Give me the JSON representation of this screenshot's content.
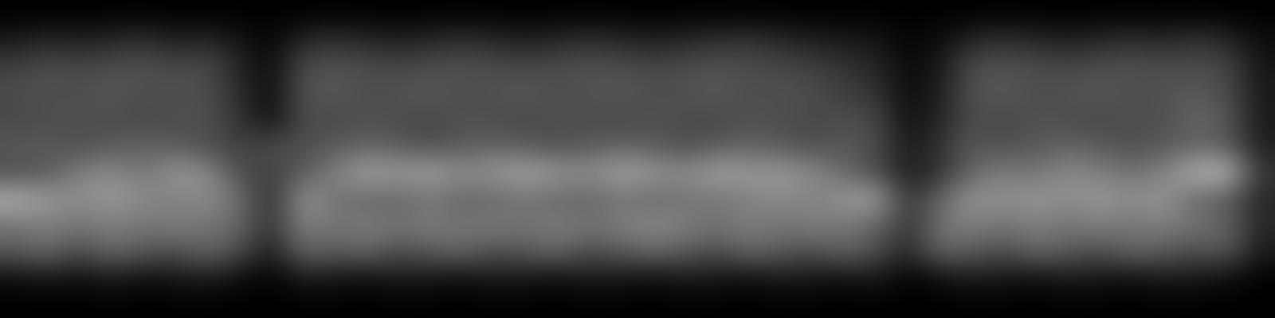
{
  "chart_data": {
    "type": "heatmap",
    "tick_labels": false,
    "color": "gray",
    "zlim": [
      0,
      1
    ],
    "cells": [
      [
        0,
        0,
        0,
        0,
        0,
        0,
        0,
        0,
        0,
        0,
        0,
        0,
        0,
        0,
        0,
        0,
        0,
        0,
        0,
        0,
        0,
        0,
        0,
        0,
        0,
        0,
        0,
        0,
        0,
        0,
        0,
        0,
        0,
        0,
        0,
        0,
        0,
        0,
        0,
        0
      ],
      [
        0.1,
        0.15,
        0.12,
        0.15,
        0.18,
        0.12,
        0.15,
        0.08,
        0.02,
        0.15,
        0.18,
        0.15,
        0.12,
        0.15,
        0.18,
        0.15,
        0.12,
        0.15,
        0.18,
        0.15,
        0.12,
        0.15,
        0.18,
        0.2,
        0.15,
        0.12,
        0.1,
        0.08,
        0.02,
        0.05,
        0.15,
        0.18,
        0.15,
        0.12,
        0.15,
        0.18,
        0.15,
        0.2,
        0.15,
        0.05
      ],
      [
        0.25,
        0.3,
        0.28,
        0.3,
        0.32,
        0.28,
        0.3,
        0.15,
        0.03,
        0.3,
        0.32,
        0.3,
        0.28,
        0.3,
        0.32,
        0.3,
        0.28,
        0.3,
        0.32,
        0.3,
        0.28,
        0.3,
        0.32,
        0.3,
        0.28,
        0.25,
        0.2,
        0.15,
        0.03,
        0.1,
        0.3,
        0.32,
        0.3,
        0.28,
        0.3,
        0.32,
        0.3,
        0.3,
        0.28,
        0.08
      ],
      [
        0.3,
        0.32,
        0.3,
        0.35,
        0.3,
        0.32,
        0.3,
        0.18,
        0.04,
        0.32,
        0.35,
        0.3,
        0.32,
        0.35,
        0.3,
        0.32,
        0.35,
        0.3,
        0.32,
        0.35,
        0.3,
        0.32,
        0.35,
        0.3,
        0.32,
        0.3,
        0.25,
        0.2,
        0.04,
        0.12,
        0.32,
        0.35,
        0.3,
        0.32,
        0.35,
        0.3,
        0.32,
        0.35,
        0.3,
        0.1
      ],
      [
        0.28,
        0.3,
        0.32,
        0.3,
        0.28,
        0.3,
        0.32,
        0.2,
        0.05,
        0.3,
        0.28,
        0.32,
        0.3,
        0.28,
        0.32,
        0.3,
        0.28,
        0.32,
        0.3,
        0.28,
        0.32,
        0.3,
        0.28,
        0.32,
        0.3,
        0.28,
        0.3,
        0.28,
        0.05,
        0.15,
        0.3,
        0.28,
        0.32,
        0.3,
        0.28,
        0.32,
        0.3,
        0.4,
        0.35,
        0.1
      ],
      [
        0.35,
        0.35,
        0.3,
        0.35,
        0.38,
        0.35,
        0.3,
        0.25,
        0.3,
        0.3,
        0.35,
        0.38,
        0.35,
        0.3,
        0.35,
        0.38,
        0.35,
        0.3,
        0.35,
        0.38,
        0.35,
        0.3,
        0.35,
        0.38,
        0.35,
        0.3,
        0.35,
        0.3,
        0.1,
        0.2,
        0.35,
        0.3,
        0.35,
        0.38,
        0.35,
        0.3,
        0.35,
        0.38,
        0.35,
        0.12
      ],
      [
        0.3,
        0.35,
        0.5,
        0.55,
        0.45,
        0.6,
        0.55,
        0.3,
        0.25,
        0.35,
        0.5,
        0.65,
        0.6,
        0.65,
        0.55,
        0.6,
        0.65,
        0.6,
        0.55,
        0.65,
        0.6,
        0.55,
        0.65,
        0.6,
        0.6,
        0.55,
        0.4,
        0.3,
        0.1,
        0.2,
        0.4,
        0.5,
        0.45,
        0.55,
        0.5,
        0.45,
        0.5,
        0.7,
        0.75,
        0.2
      ],
      [
        0.7,
        0.6,
        0.55,
        0.6,
        0.55,
        0.5,
        0.55,
        0.45,
        0.15,
        0.6,
        0.45,
        0.4,
        0.4,
        0.45,
        0.4,
        0.4,
        0.45,
        0.4,
        0.4,
        0.45,
        0.4,
        0.45,
        0.45,
        0.5,
        0.55,
        0.5,
        0.6,
        0.65,
        0.2,
        0.4,
        0.6,
        0.55,
        0.6,
        0.55,
        0.6,
        0.55,
        0.6,
        0.4,
        0.35,
        0.15
      ],
      [
        0.45,
        0.5,
        0.45,
        0.5,
        0.45,
        0.5,
        0.45,
        0.4,
        0.2,
        0.5,
        0.45,
        0.5,
        0.45,
        0.5,
        0.45,
        0.5,
        0.45,
        0.5,
        0.45,
        0.5,
        0.55,
        0.5,
        0.45,
        0.5,
        0.45,
        0.5,
        0.45,
        0.4,
        0.2,
        0.45,
        0.5,
        0.45,
        0.5,
        0.45,
        0.5,
        0.45,
        0.5,
        0.45,
        0.4,
        0.15
      ],
      [
        0.35,
        0.4,
        0.3,
        0.4,
        0.35,
        0.3,
        0.4,
        0.3,
        0.1,
        0.4,
        0.35,
        0.4,
        0.3,
        0.35,
        0.4,
        0.3,
        0.35,
        0.4,
        0.3,
        0.35,
        0.4,
        0.35,
        0.3,
        0.4,
        0.35,
        0.3,
        0.4,
        0.3,
        0.15,
        0.4,
        0.35,
        0.3,
        0.4,
        0.35,
        0.3,
        0.4,
        0.35,
        0.3,
        0.35,
        0.1
      ],
      [
        0.05,
        0.08,
        0.05,
        0.1,
        0.05,
        0.08,
        0.1,
        0.05,
        0.0,
        0.1,
        0.08,
        0.05,
        0.1,
        0.08,
        0.05,
        0.1,
        0.08,
        0.05,
        0.1,
        0.08,
        0.05,
        0.1,
        0.08,
        0.05,
        0.1,
        0.08,
        0.05,
        0.1,
        0.0,
        0.05,
        0.1,
        0.08,
        0.05,
        0.1,
        0.08,
        0.05,
        0.1,
        0.08,
        0.05,
        0.0
      ],
      [
        0,
        0,
        0,
        0,
        0,
        0,
        0,
        0,
        0,
        0,
        0,
        0,
        0,
        0,
        0,
        0,
        0,
        0,
        0,
        0,
        0,
        0,
        0,
        0,
        0,
        0,
        0,
        0,
        0,
        0,
        0,
        0,
        0,
        0,
        0,
        0,
        0,
        0,
        0,
        0
      ]
    ]
  }
}
